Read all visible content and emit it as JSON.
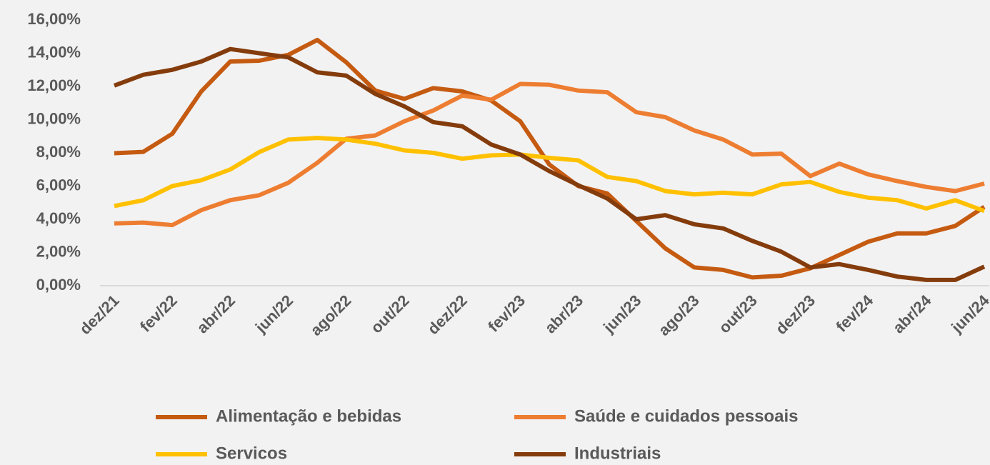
{
  "chart_data": {
    "type": "line",
    "categories": [
      "dez/21",
      null,
      "fev/22",
      null,
      "abr/22",
      null,
      "jun/22",
      null,
      "ago/22",
      null,
      "out/22",
      null,
      "dez/22",
      null,
      "fev/23",
      null,
      "abr/23",
      null,
      "jun/23",
      null,
      "ago/23",
      null,
      "out/23",
      null,
      "dez/23",
      null,
      "fev/24",
      null,
      "abr/24",
      null,
      "jun/24"
    ],
    "series": [
      {
        "name": "Alimentação e bebidas",
        "color": "#c55a11",
        "values": [
          7.98,
          8.06,
          9.15,
          11.7,
          13.5,
          13.55,
          13.9,
          14.8,
          13.45,
          11.75,
          11.25,
          11.9,
          11.7,
          11.15,
          9.9,
          7.3,
          6.0,
          5.55,
          3.9,
          2.25,
          1.1,
          0.95,
          0.5,
          0.6,
          1.05,
          1.85,
          2.65,
          3.15,
          3.15,
          3.6,
          4.75
        ]
      },
      {
        "name": "Saúde e cuidados pessoais",
        "color": "#ed7d31",
        "values": [
          3.75,
          3.8,
          3.65,
          4.55,
          5.15,
          5.45,
          6.2,
          7.4,
          8.85,
          9.05,
          9.9,
          10.55,
          11.45,
          11.2,
          12.15,
          12.1,
          11.75,
          11.65,
          10.45,
          10.15,
          9.35,
          8.8,
          7.9,
          7.95,
          6.6,
          7.35,
          6.7,
          6.3,
          5.95,
          5.7,
          6.15
        ]
      },
      {
        "name": "Servicos",
        "color": "#ffc000",
        "values": [
          4.8,
          5.15,
          6.0,
          6.35,
          7.0,
          8.05,
          8.8,
          8.9,
          8.8,
          8.55,
          8.15,
          8.0,
          7.65,
          7.85,
          7.9,
          7.7,
          7.55,
          6.55,
          6.3,
          5.7,
          5.5,
          5.6,
          5.5,
          6.1,
          6.25,
          5.65,
          5.3,
          5.15,
          4.65,
          5.15,
          4.5
        ]
      },
      {
        "name": "Industriais",
        "color": "#843c0c",
        "values": [
          12.05,
          12.7,
          13.0,
          13.5,
          14.25,
          14.0,
          13.75,
          12.85,
          12.65,
          11.55,
          10.8,
          9.85,
          9.6,
          8.5,
          7.9,
          6.9,
          6.05,
          5.25,
          4.0,
          4.25,
          3.7,
          3.45,
          2.7,
          2.05,
          1.1,
          1.3,
          0.95,
          0.55,
          0.35,
          0.35,
          1.15
        ]
      }
    ],
    "ylim": [
      0,
      16
    ],
    "yticks": [
      {
        "value": 0,
        "label": "0,00%"
      },
      {
        "value": 2,
        "label": "2,00%"
      },
      {
        "value": 4,
        "label": "4,00%"
      },
      {
        "value": 6,
        "label": "6,00%"
      },
      {
        "value": 8,
        "label": "8,00%"
      },
      {
        "value": 10,
        "label": "10,00%"
      },
      {
        "value": 12,
        "label": "12,00%"
      },
      {
        "value": 14,
        "label": "14,00%"
      },
      {
        "value": 16,
        "label": "16,00%"
      }
    ],
    "grid": false,
    "legend": "bottom"
  }
}
